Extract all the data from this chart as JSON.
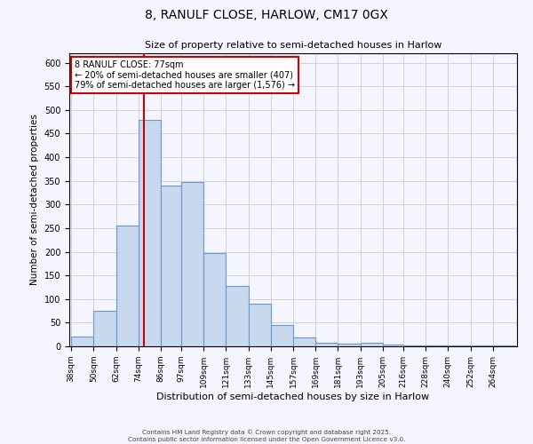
{
  "title": "8, RANULF CLOSE, HARLOW, CM17 0GX",
  "subtitle": "Size of property relative to semi-detached houses in Harlow",
  "xlabel": "Distribution of semi-detached houses by size in Harlow",
  "ylabel": "Number of semi-detached properties",
  "bin_edges": [
    38,
    50,
    62,
    74,
    86,
    97,
    109,
    121,
    133,
    145,
    157,
    169,
    181,
    193,
    205,
    216,
    228,
    240,
    252,
    264,
    276
  ],
  "bar_heights": [
    20,
    75,
    255,
    480,
    340,
    348,
    198,
    127,
    90,
    45,
    18,
    8,
    5,
    8,
    3,
    2,
    1,
    1,
    1,
    1
  ],
  "bar_color": "#c8d8ee",
  "bar_edge_color": "#6699cc",
  "grid_color": "#cccccc",
  "vline_x": 77,
  "vline_color": "#cc0000",
  "annotation_text": "8 RANULF CLOSE: 77sqm\n← 20% of semi-detached houses are smaller (407)\n79% of semi-detached houses are larger (1,576) →",
  "annotation_box_color": "#ffffff",
  "annotation_box_edge": "#cc0000",
  "ylim": [
    0,
    620
  ],
  "yticks": [
    0,
    50,
    100,
    150,
    200,
    250,
    300,
    350,
    400,
    450,
    500,
    550,
    600
  ],
  "footer_line1": "Contains HM Land Registry data © Crown copyright and database right 2025.",
  "footer_line2": "Contains public sector information licensed under the Open Government Licence v3.0.",
  "bg_color": "#f5f5ff"
}
